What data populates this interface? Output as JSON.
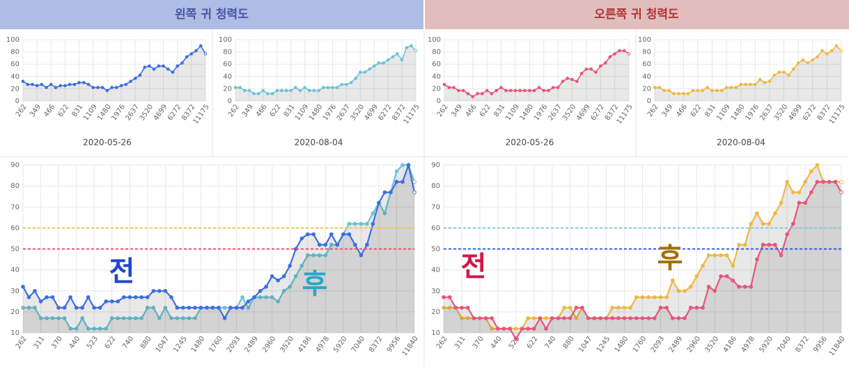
{
  "headers": [
    "왼쪽 귀 청력도",
    "오른쪽 귀 청력도"
  ],
  "chart_data": [
    {
      "type": "line",
      "xlabel": "2020-05-26",
      "categories": [
        "262",
        null,
        null,
        "349",
        null,
        null,
        "466",
        null,
        null,
        "622",
        null,
        null,
        "831",
        null,
        null,
        "1109",
        null,
        null,
        "1480",
        null,
        null,
        "1976",
        null,
        null,
        "2637",
        null,
        null,
        "3520",
        null,
        null,
        "4699",
        null,
        null,
        "6272",
        null,
        null,
        "8372",
        null,
        null,
        "11175"
      ],
      "series": [
        {
          "color": "#3b6fe0",
          "values": [
            32,
            27,
            27,
            25,
            27,
            22,
            27,
            22,
            25,
            25,
            27,
            27,
            30,
            30,
            27,
            22,
            22,
            22,
            17,
            22,
            22,
            25,
            27,
            32,
            37,
            42,
            55,
            57,
            52,
            57,
            57,
            52,
            47,
            57,
            62,
            72,
            77,
            82,
            90,
            77
          ]
        }
      ],
      "ylim": [
        0,
        100
      ],
      "yticks": [
        0,
        20,
        40,
        60,
        80,
        100
      ],
      "grid": true
    },
    {
      "type": "line",
      "xlabel": "2020-08-04",
      "categories": [
        "262",
        null,
        null,
        "349",
        null,
        null,
        "466",
        null,
        null,
        "622",
        null,
        null,
        "831",
        null,
        null,
        "1109",
        null,
        null,
        "1480",
        null,
        null,
        "1976",
        null,
        null,
        "2637",
        null,
        null,
        "3520",
        null,
        null,
        "4699",
        null,
        null,
        "6272",
        null,
        null,
        "8372",
        null,
        null,
        "11175"
      ],
      "series": [
        {
          "color": "#6cc3d5",
          "values": [
            22,
            22,
            17,
            17,
            12,
            12,
            17,
            12,
            12,
            17,
            17,
            17,
            17,
            22,
            17,
            22,
            17,
            17,
            17,
            22,
            22,
            22,
            22,
            27,
            27,
            30,
            37,
            47,
            47,
            52,
            57,
            62,
            62,
            67,
            72,
            77,
            67,
            87,
            90,
            82
          ]
        }
      ],
      "ylim": [
        0,
        100
      ],
      "yticks": [
        0,
        20,
        40,
        60,
        80,
        100
      ],
      "grid": true
    },
    {
      "type": "line",
      "xlabel": "2020-05-26",
      "categories": [
        "262",
        null,
        null,
        "349",
        null,
        null,
        "466",
        null,
        null,
        "622",
        null,
        null,
        "831",
        null,
        null,
        "1109",
        null,
        null,
        "1480",
        null,
        null,
        "1976",
        null,
        null,
        "2637",
        null,
        null,
        "3520",
        null,
        null,
        "4699",
        null,
        null,
        "6272",
        null,
        null,
        "8372",
        null,
        null,
        "11175"
      ],
      "series": [
        {
          "color": "#e8557a",
          "values": [
            27,
            22,
            22,
            17,
            17,
            12,
            7,
            12,
            12,
            17,
            12,
            17,
            22,
            17,
            17,
            17,
            17,
            17,
            17,
            17,
            22,
            17,
            17,
            22,
            22,
            32,
            37,
            35,
            32,
            45,
            52,
            52,
            47,
            57,
            62,
            72,
            77,
            82,
            82,
            77
          ]
        }
      ],
      "ylim": [
        0,
        100
      ],
      "yticks": [
        0,
        20,
        40,
        60,
        80,
        100
      ],
      "grid": true
    },
    {
      "type": "line",
      "xlabel": "2020-08-04",
      "categories": [
        "262",
        null,
        null,
        "349",
        null,
        null,
        "466",
        null,
        null,
        "622",
        null,
        null,
        "831",
        null,
        null,
        "1109",
        null,
        null,
        "1480",
        null,
        null,
        "1976",
        null,
        null,
        "2637",
        null,
        null,
        "3520",
        null,
        null,
        "4699",
        null,
        null,
        "6272",
        null,
        null,
        "8372",
        null,
        null,
        "11175"
      ],
      "series": [
        {
          "color": "#f0b840",
          "values": [
            22,
            22,
            17,
            17,
            12,
            12,
            12,
            12,
            17,
            17,
            17,
            22,
            17,
            17,
            17,
            22,
            22,
            22,
            27,
            27,
            27,
            27,
            35,
            30,
            32,
            42,
            47,
            47,
            42,
            52,
            62,
            67,
            62,
            67,
            72,
            82,
            77,
            82,
            90,
            82
          ]
        }
      ],
      "ylim": [
        0,
        100
      ],
      "yticks": [
        0,
        20,
        40,
        60,
        80,
        100
      ],
      "grid": true
    },
    {
      "type": "line",
      "categories": [
        "262",
        null,
        null,
        "311",
        null,
        null,
        "370",
        null,
        null,
        "440",
        null,
        null,
        "523",
        null,
        null,
        "622",
        null,
        null,
        "740",
        null,
        null,
        "880",
        null,
        null,
        "1047",
        null,
        null,
        "1245",
        null,
        null,
        "1480",
        null,
        null,
        "1760",
        null,
        null,
        "2093",
        null,
        null,
        "2489",
        null,
        null,
        "2960",
        null,
        null,
        "3520",
        null,
        null,
        "4186",
        null,
        null,
        "4978",
        null,
        null,
        "5920",
        null,
        null,
        "7040",
        null,
        null,
        "8372",
        null,
        null,
        "9956",
        null,
        null,
        "11840"
      ],
      "series": [
        {
          "color": "#6cc3d5",
          "values": [
            22,
            22,
            22,
            17,
            17,
            17,
            17,
            17,
            12,
            12,
            17,
            12,
            12,
            12,
            12,
            17,
            17,
            17,
            17,
            17,
            17,
            22,
            22,
            17,
            22,
            17,
            17,
            17,
            17,
            17,
            22,
            22,
            22,
            22,
            22,
            22,
            22,
            27,
            22,
            27,
            27,
            27,
            27,
            25,
            30,
            32,
            37,
            42,
            47,
            47,
            47,
            47,
            52,
            52,
            57,
            62,
            62,
            62,
            62,
            67,
            72,
            67,
            77,
            87,
            90,
            90,
            82
          ]
        },
        {
          "color": "#3b6fe0",
          "values": [
            32,
            27,
            30,
            25,
            27,
            27,
            22,
            22,
            27,
            22,
            22,
            27,
            22,
            22,
            25,
            25,
            25,
            27,
            27,
            27,
            27,
            27,
            30,
            30,
            30,
            27,
            22,
            22,
            22,
            22,
            22,
            22,
            22,
            22,
            17,
            22,
            22,
            22,
            25,
            27,
            30,
            32,
            37,
            35,
            37,
            42,
            50,
            55,
            57,
            57,
            52,
            52,
            57,
            52,
            57,
            57,
            52,
            47,
            52,
            62,
            72,
            77,
            77,
            82,
            82,
            90,
            77
          ]
        }
      ],
      "reference_lines": [
        {
          "value": 60,
          "color": "#f5c542"
        },
        {
          "value": 50,
          "color": "#f0506e"
        }
      ],
      "annotations": [
        {
          "text": "전",
          "color": "#1f48c8"
        },
        {
          "text": "후",
          "color": "#2aa6c8"
        }
      ],
      "ylim": [
        10,
        90
      ],
      "yticks": [
        10,
        20,
        30,
        40,
        50,
        60,
        70,
        80,
        90
      ],
      "grid": true
    },
    {
      "type": "line",
      "categories": [
        "262",
        null,
        null,
        "311",
        null,
        null,
        "370",
        null,
        null,
        "440",
        null,
        null,
        "523",
        null,
        null,
        "622",
        null,
        null,
        "740",
        null,
        null,
        "880",
        null,
        null,
        "1047",
        null,
        null,
        "1245",
        null,
        null,
        "1480",
        null,
        null,
        "1760",
        null,
        null,
        "2093",
        null,
        null,
        "2489",
        null,
        null,
        "2960",
        null,
        null,
        "3520",
        null,
        null,
        "4186",
        null,
        null,
        "4978",
        null,
        null,
        "5920",
        null,
        null,
        "7040",
        null,
        null,
        "8372",
        null,
        null,
        "9956",
        null,
        null,
        "11840"
      ],
      "series": [
        {
          "color": "#f0b840",
          "values": [
            22,
            22,
            22,
            17,
            17,
            17,
            17,
            17,
            12,
            12,
            12,
            12,
            12,
            12,
            17,
            17,
            17,
            17,
            17,
            17,
            22,
            22,
            17,
            22,
            17,
            17,
            17,
            17,
            22,
            22,
            22,
            22,
            27,
            27,
            27,
            27,
            27,
            27,
            35,
            30,
            30,
            32,
            37,
            42,
            47,
            47,
            47,
            47,
            42,
            52,
            52,
            62,
            67,
            62,
            62,
            67,
            72,
            82,
            77,
            77,
            82,
            87,
            90,
            82,
            82,
            82,
            82
          ]
        },
        {
          "color": "#e8557a",
          "values": [
            27,
            27,
            22,
            22,
            22,
            17,
            17,
            17,
            17,
            12,
            12,
            12,
            7,
            12,
            12,
            12,
            17,
            12,
            17,
            17,
            17,
            17,
            22,
            22,
            17,
            17,
            17,
            17,
            17,
            17,
            17,
            17,
            17,
            17,
            17,
            17,
            22,
            22,
            17,
            17,
            17,
            22,
            22,
            22,
            32,
            30,
            37,
            37,
            35,
            32,
            32,
            32,
            45,
            52,
            52,
            52,
            47,
            57,
            62,
            72,
            72,
            77,
            82,
            82,
            82,
            82,
            77
          ]
        }
      ],
      "reference_lines": [
        {
          "value": 60,
          "color": "#7ccbe8"
        },
        {
          "value": 50,
          "color": "#2f5fe0"
        }
      ],
      "annotations": [
        {
          "text": "전",
          "color": "#d0164a"
        },
        {
          "text": "후",
          "color": "#a0700a"
        }
      ],
      "ylim": [
        10,
        90
      ],
      "yticks": [
        10,
        20,
        30,
        40,
        50,
        60,
        70,
        80,
        90
      ],
      "grid": true
    }
  ]
}
